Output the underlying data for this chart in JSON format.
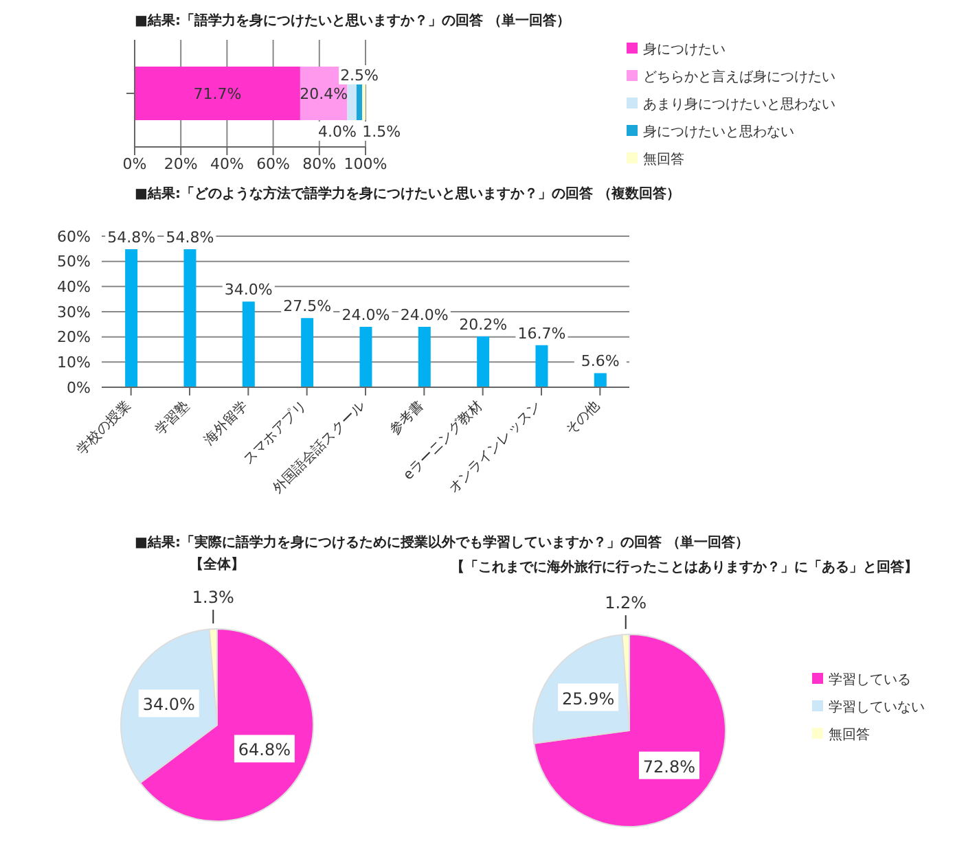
{
  "chart_data": [
    {
      "type": "bar",
      "title": "■結果:「語学力を身につけたいと思いますか？」の回答 （単一回答）",
      "orientation": "horizontal",
      "stacked": true,
      "categories": [
        null
      ],
      "series": [
        {
          "name": "身につけたい",
          "color": "#ff33cc",
          "values": [
            71.7
          ],
          "value_labels": [
            "71.7%"
          ]
        },
        {
          "name": "どちらかと言えば身につけたい",
          "color": "#ff99ee",
          "values": [
            20.4
          ],
          "value_labels": [
            "20.4%"
          ]
        },
        {
          "name": "あまり身につけたいと思わない",
          "color": "#cce8f8",
          "values": [
            4.0
          ],
          "value_labels": [
            "4.0%"
          ]
        },
        {
          "name": "身につけたいと思わない",
          "color": "#1aa6d8",
          "values": [
            2.5
          ],
          "value_labels": [
            "2.5%"
          ]
        },
        {
          "name": "無回答",
          "color": "#ffffcc",
          "values": [
            1.5
          ],
          "value_labels": [
            "1.5%"
          ]
        }
      ],
      "xlim": [
        0,
        100
      ],
      "xticks": [
        {
          "value": 0,
          "label": "0%"
        },
        {
          "value": 20,
          "label": "20%"
        },
        {
          "value": 40,
          "label": "40%"
        },
        {
          "value": 60,
          "label": "60%"
        },
        {
          "value": 80,
          "label": "80%"
        },
        {
          "value": 100,
          "label": "100%"
        }
      ],
      "grid": "x",
      "legend": "right"
    },
    {
      "type": "bar",
      "title": "■結果:「どのような方法で語学力を身につけたいと思いますか？」の回答 （複数回答）",
      "categories": [
        "学校の授業",
        "学習塾",
        "海外留学",
        "スマホアプリ",
        "外国語会話スクール",
        "参考書",
        "eラーニング教材",
        "オンラインレッスン",
        "その他"
      ],
      "values": [
        54.8,
        54.8,
        34.0,
        27.5,
        24.0,
        24.0,
        20.2,
        16.7,
        5.6
      ],
      "value_labels": [
        "54.8%",
        "54.8%",
        "34.0%",
        "27.5%",
        "24.0%",
        "24.0%",
        "20.2%",
        "16.7%",
        "5.6%"
      ],
      "color": "#00b0f0",
      "ylim": [
        0,
        60
      ],
      "yticks": [
        {
          "value": 0,
          "label": "0%"
        },
        {
          "value": 10,
          "label": "10%"
        },
        {
          "value": 20,
          "label": "20%"
        },
        {
          "value": 30,
          "label": "30%"
        },
        {
          "value": 40,
          "label": "40%"
        },
        {
          "value": 50,
          "label": "50%"
        },
        {
          "value": 60,
          "label": "60%"
        }
      ],
      "grid": "y"
    },
    {
      "type": "pie",
      "title": "■結果:「実際に語学力を身につけるために授業以外でも学習していますか？」の回答 （単一回答）",
      "subtitle": "【全体】",
      "categories": [
        null,
        null,
        null
      ],
      "values": [
        64.8,
        34.0,
        1.3
      ],
      "colors": [
        "#ff33cc",
        "#cce8f8",
        "#ffffcc"
      ],
      "value_labels": [
        "64.8%",
        "34.0%",
        "1.3%"
      ]
    },
    {
      "type": "pie",
      "title": "【「これまでに海外旅行に行ったことはありますか？」に「ある」と回答】",
      "categories": [
        "学習している",
        "学習していない",
        "無回答"
      ],
      "values": [
        72.8,
        25.9,
        1.2
      ],
      "colors": [
        "#ff33cc",
        "#cce8f8",
        "#ffffcc"
      ],
      "value_labels": [
        "72.8%",
        "25.9%",
        "1.2%"
      ],
      "legend": "right"
    }
  ]
}
